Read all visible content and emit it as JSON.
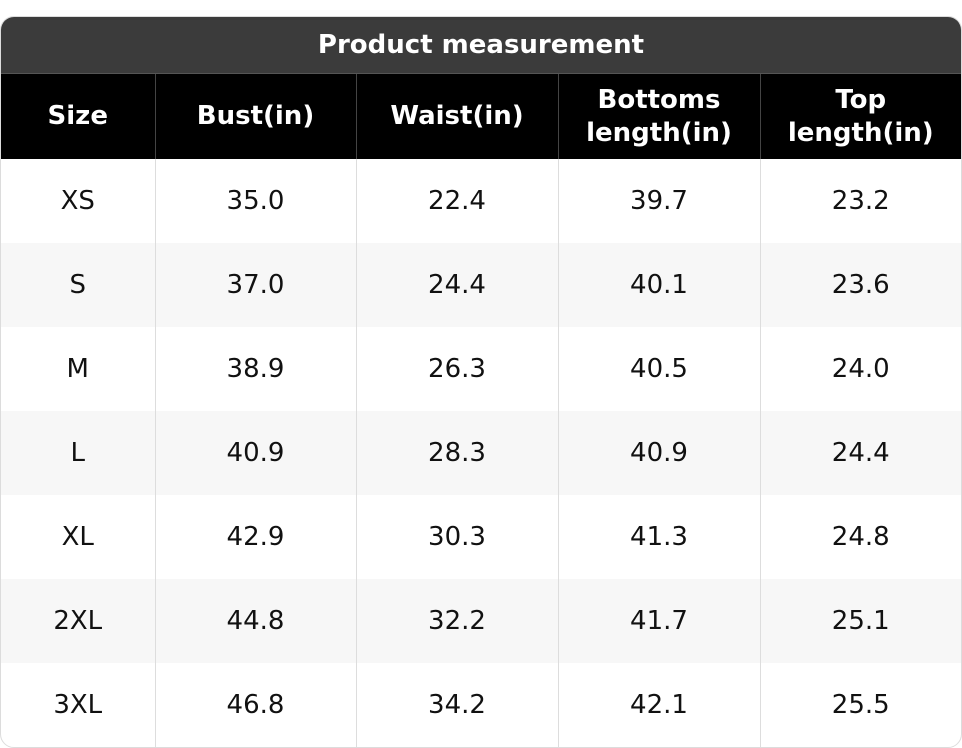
{
  "table": {
    "title": "Product measurement",
    "header": [
      "Size",
      "Bust(in)",
      "Waist(in)",
      "Bottoms length(in)",
      "Top length(in)"
    ],
    "rows": [
      [
        "XS",
        "35.0",
        "22.4",
        "39.7",
        "23.2"
      ],
      [
        "S",
        "37.0",
        "24.4",
        "40.1",
        "23.6"
      ],
      [
        "M",
        "38.9",
        "26.3",
        "40.5",
        "24.0"
      ],
      [
        "L",
        "40.9",
        "28.3",
        "40.9",
        "24.4"
      ],
      [
        "XL",
        "42.9",
        "30.3",
        "41.3",
        "24.8"
      ],
      [
        "2XL",
        "44.8",
        "32.2",
        "41.7",
        "25.1"
      ],
      [
        "3XL",
        "46.8",
        "34.2",
        "42.1",
        "25.5"
      ]
    ]
  }
}
